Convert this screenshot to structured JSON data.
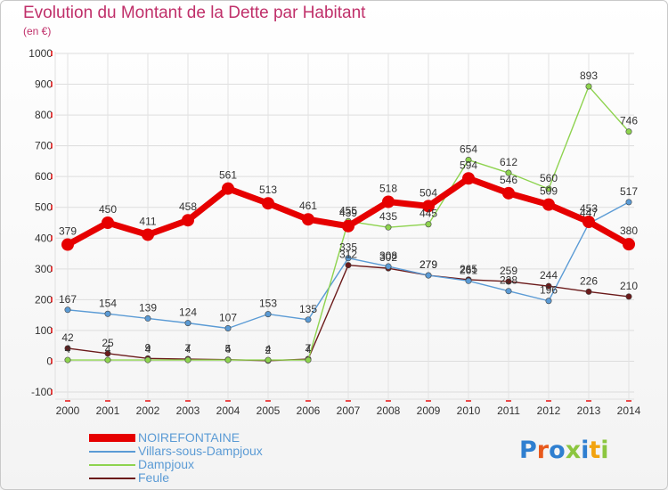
{
  "title": "Evolution du Montant de la Dette par Habitant",
  "subtitle": "(en €)",
  "logo": {
    "text": "Proxiti",
    "letter_colors": [
      "#2f7fd0",
      "#e8591c",
      "#2f7fd0",
      "#8cc63f",
      "#2f7fd0",
      "#f2a30f",
      "#8cc63f"
    ]
  },
  "chart_data": {
    "type": "line",
    "x": [
      "2000",
      "2001",
      "2002",
      "2003",
      "2004",
      "2005",
      "2006",
      "2007",
      "2008",
      "2009",
      "2010",
      "2011",
      "2012",
      "2013",
      "2014"
    ],
    "ylim": [
      -100,
      1000
    ],
    "yticks": [
      "-100",
      "0",
      "100",
      "200",
      "300",
      "400",
      "500",
      "600",
      "700",
      "800",
      "900",
      "1000"
    ],
    "grid": true,
    "legend_placement": "bottom-left",
    "series": [
      {
        "name": "Feule",
        "color": "#6b1a1a",
        "values": [
          42,
          25,
          9,
          7,
          5,
          2,
          7,
          312,
          302,
          279,
          265,
          259,
          244,
          226,
          210
        ],
        "labels": [
          "42",
          "25",
          "9",
          "7",
          "5",
          "2",
          "7",
          "312",
          "302",
          "279",
          "265",
          "259",
          "244",
          "226",
          "210"
        ]
      },
      {
        "name": "Villars-sous-Dampjoux",
        "color": "#5b9bd5",
        "values": [
          167,
          154,
          139,
          124,
          107,
          153,
          135,
          335,
          308,
          279,
          261,
          228,
          196,
          447,
          517
        ],
        "labels": [
          "167",
          "154",
          "139",
          "124",
          "107",
          "153",
          "135",
          "335",
          "308",
          "279",
          "261",
          "228",
          "196",
          "447",
          "517"
        ]
      },
      {
        "name": "Dampjoux",
        "color": "#8ed34f",
        "values": [
          4,
          4,
          4,
          4,
          4,
          4,
          4,
          455,
          435,
          445,
          654,
          612,
          560,
          893,
          746
        ],
        "labels": [
          "4",
          "4",
          "4",
          "4",
          "4",
          "4",
          "4",
          "455",
          "435",
          "445",
          "654",
          "612",
          "560",
          "893",
          "746"
        ]
      },
      {
        "name": "NOIREFONTAINE",
        "color": "#e60000",
        "values": [
          379,
          450,
          411,
          458,
          561,
          513,
          461,
          439,
          518,
          504,
          594,
          546,
          509,
          453,
          380
        ],
        "labels": [
          "379",
          "450",
          "411",
          "458",
          "561",
          "513",
          "461",
          "439",
          "518",
          "504",
          "594",
          "546",
          "509",
          "453",
          "380"
        ]
      }
    ]
  },
  "legend": {
    "items": [
      {
        "label": "NOIREFONTAINE",
        "color": "#e60000"
      },
      {
        "label": "Villars-sous-Dampjoux",
        "color": "#5b9bd5"
      },
      {
        "label": "Dampjoux",
        "color": "#8ed34f"
      },
      {
        "label": "Feule",
        "color": "#6b1a1a"
      }
    ]
  }
}
